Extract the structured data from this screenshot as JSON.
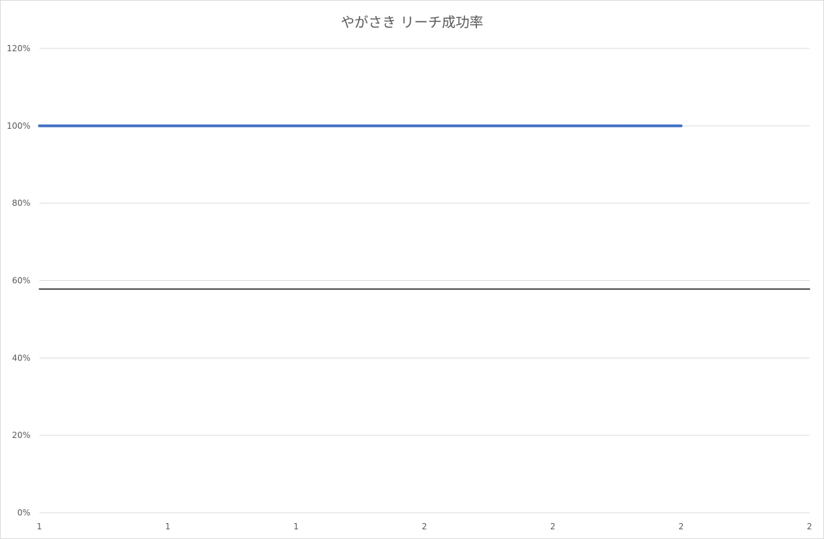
{
  "chart_data": {
    "type": "line",
    "title": "やがさき リーチ成功率",
    "xlabel": "",
    "ylabel": "",
    "x_tick_labels": [
      "1",
      "1",
      "1",
      "2",
      "2",
      "2",
      "2"
    ],
    "y_tick_labels": [
      "0%",
      "20%",
      "40%",
      "60%",
      "80%",
      "100%",
      "120%"
    ],
    "ylim": [
      0,
      1.2
    ],
    "grid": true,
    "series": [
      {
        "x_index": [
          0,
          5
        ],
        "values": [
          1.0,
          1.0
        ],
        "color": "#4472c4"
      },
      {
        "x_index": [
          0,
          6
        ],
        "values": [
          0.578,
          0.578
        ],
        "color": "#404040"
      }
    ]
  }
}
